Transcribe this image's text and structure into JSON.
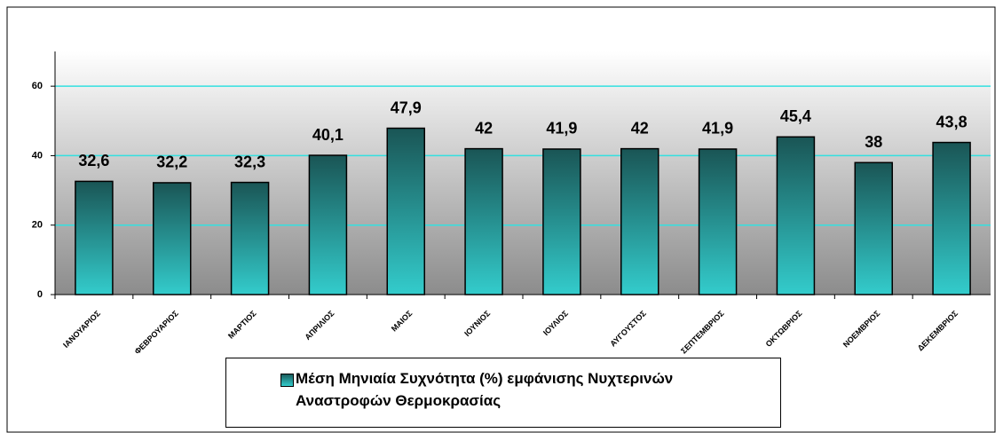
{
  "chart_data": {
    "type": "bar",
    "categories": [
      "ΙΑΝΟΥΑΡΙΟΣ",
      "ΦΕΒΡΟΥΑΡΙΟΣ",
      "ΜΑΡΤΙΟΣ",
      "ΑΠΡΙΛΙΟΣ",
      "ΜΑΙΟΣ",
      "ΙΟΥΝΙΟΣ",
      "ΙΟΥΛΙΟΣ",
      "ΑΥΓΟΥΣΤΟΣ",
      "ΣΕΠΤΕΜΒΡΙΟΣ",
      "ΟΚΤΩΒΡΙΟΣ",
      "ΝΟΕΜΒΡΙΟΣ",
      "ΔΕΚΕΜΒΡΙΟΣ"
    ],
    "series": [
      {
        "name": "Μέση Μηνιαία Συχνότητα (%) εμφάνισης Νυχτερινών Αναστροφών Θερμοκρασίας",
        "color": "#33cccc",
        "values": [
          32.6,
          32.2,
          32.3,
          40.1,
          47.9,
          42,
          41.9,
          42,
          41.9,
          45.4,
          38,
          43.8
        ],
        "value_labels": [
          "32,6",
          "32,2",
          "32,3",
          "40,1",
          "47,9",
          "42",
          "41,9",
          "42",
          "41,9",
          "45,4",
          "38",
          "43,8"
        ]
      }
    ],
    "ylim": [
      0,
      70
    ],
    "yticks": [
      0,
      20,
      40,
      60
    ],
    "grid": true
  }
}
